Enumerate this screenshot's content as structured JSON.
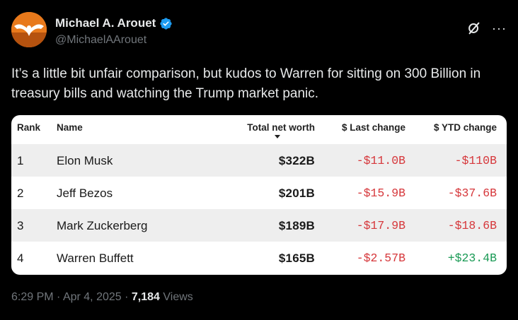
{
  "author": {
    "display_name": "Michael A. Arouet",
    "handle": "@MichaelAArouet",
    "verified": true,
    "avatar_icon": "eagle-emblem-icon"
  },
  "actions": {
    "grok_icon": "grok-icon",
    "more_label": "···"
  },
  "tweet": {
    "text": "It’s a little bit unfair comparison, but kudos to Warren for sitting on 300 Billion in treasury bills and watching the Trump market panic."
  },
  "table": {
    "headers": {
      "rank": "Rank",
      "name": "Name",
      "worth": "Total net worth",
      "last": "$ Last change",
      "ytd": "$ YTD change"
    },
    "sort_column": "worth",
    "rows": [
      {
        "rank": "1",
        "name": "Elon Musk",
        "worth": "$322B",
        "last": "-$11.0B",
        "ytd": "-$110B"
      },
      {
        "rank": "2",
        "name": "Jeff Bezos",
        "worth": "$201B",
        "last": "-$15.9B",
        "ytd": "-$37.6B"
      },
      {
        "rank": "3",
        "name": "Mark Zuckerberg",
        "worth": "$189B",
        "last": "-$17.9B",
        "ytd": "-$18.6B"
      },
      {
        "rank": "4",
        "name": "Warren Buffett",
        "worth": "$165B",
        "last": "-$2.57B",
        "ytd": "+$23.4B"
      }
    ],
    "colors": {
      "negative": "#d6373b",
      "positive": "#1a9a55"
    }
  },
  "meta": {
    "time": "6:29 PM",
    "date": "Apr 4, 2025",
    "views_count": "7,184",
    "views_label": "Views",
    "separator": "·"
  }
}
